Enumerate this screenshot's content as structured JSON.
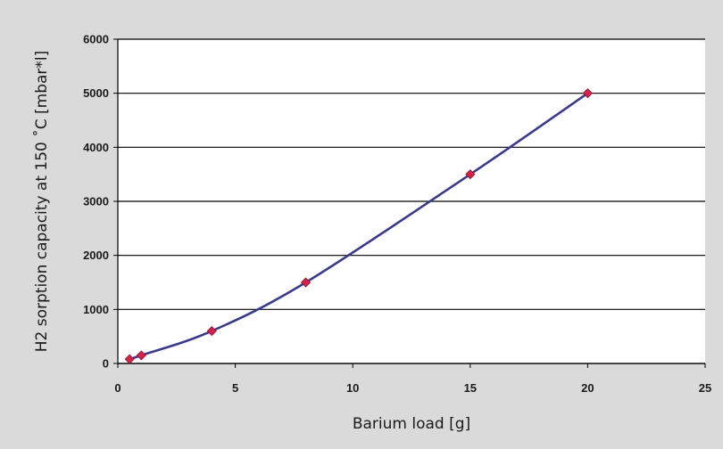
{
  "chart_data": {
    "type": "line",
    "title": "",
    "xlabel": "Barium load [g]",
    "ylabel": "H2 sorption capacity at 150 ˚C [mbar*l]",
    "xlim": [
      0,
      25
    ],
    "ylim": [
      0,
      6000
    ],
    "x_ticks": [
      "0",
      "5",
      "10",
      "15",
      "20",
      "25"
    ],
    "y_ticks": [
      "0",
      "1000",
      "2000",
      "3000",
      "4000",
      "5000",
      "6000"
    ],
    "grid": "horizontal",
    "series": [
      {
        "color": "#3a3a8c",
        "marker_color": "#d6224a",
        "marker": "diamond",
        "points": [
          {
            "x": 0.5,
            "y": 80
          },
          {
            "x": 1,
            "y": 150
          },
          {
            "x": 4,
            "y": 600
          },
          {
            "x": 8,
            "y": 1500
          },
          {
            "x": 15,
            "y": 3500
          },
          {
            "x": 20,
            "y": 5000
          }
        ]
      }
    ]
  }
}
